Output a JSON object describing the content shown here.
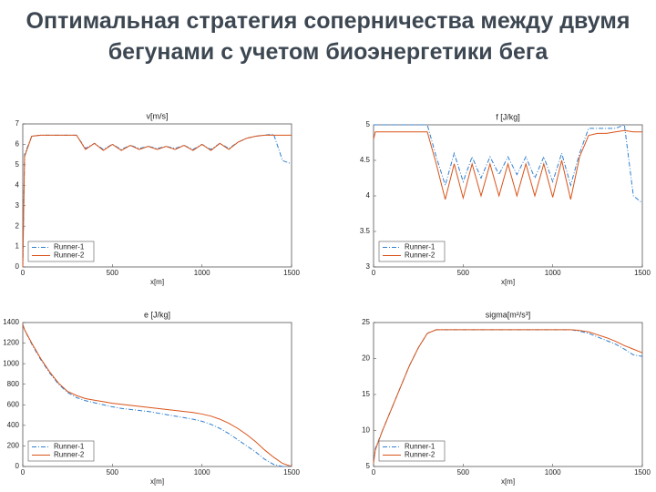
{
  "title": "Оптимальная стратегия соперничества между двумя бегунами с учетом биоэнергетики бега",
  "chart_data": [
    {
      "type": "line",
      "title": "v[m/s]",
      "xlabel": "x[m]",
      "xlim": [
        0,
        1500
      ],
      "xticks": [
        0,
        500,
        1000,
        1500
      ],
      "ylim": [
        0,
        7
      ],
      "yticks": [
        0,
        1,
        2,
        3,
        4,
        5,
        6,
        7
      ],
      "legend": "lower left",
      "x": [
        0,
        10,
        50,
        100,
        150,
        200,
        250,
        300,
        350,
        400,
        450,
        500,
        550,
        600,
        650,
        700,
        750,
        800,
        850,
        900,
        950,
        1000,
        1050,
        1100,
        1150,
        1200,
        1250,
        1300,
        1350,
        1400,
        1450,
        1500
      ],
      "series": [
        {
          "name": "Runner-1",
          "color": "#2f7fd0",
          "linestyle": "dashdot",
          "values": [
            0,
            5.5,
            6.4,
            6.45,
            6.45,
            6.45,
            6.45,
            6.45,
            5.8,
            6.05,
            5.75,
            6.0,
            5.75,
            5.95,
            5.8,
            5.9,
            5.8,
            5.9,
            5.8,
            5.95,
            5.75,
            6.0,
            5.75,
            6.05,
            5.8,
            6.1,
            6.3,
            6.4,
            6.45,
            6.5,
            5.2,
            5.05
          ]
        },
        {
          "name": "Runner-2",
          "color": "#d95319",
          "linestyle": "solid",
          "values": [
            0,
            5.4,
            6.4,
            6.45,
            6.45,
            6.45,
            6.45,
            6.45,
            5.75,
            6.05,
            5.7,
            6.0,
            5.7,
            5.95,
            5.75,
            5.9,
            5.75,
            5.9,
            5.75,
            5.95,
            5.7,
            6.0,
            5.7,
            6.05,
            5.75,
            6.1,
            6.3,
            6.4,
            6.45,
            6.45,
            6.45,
            6.45
          ]
        }
      ]
    },
    {
      "type": "line",
      "title": "f [J/kg]",
      "xlabel": "x[m]",
      "xlim": [
        0,
        1500
      ],
      "xticks": [
        0,
        500,
        1000,
        1500
      ],
      "ylim": [
        3,
        5
      ],
      "yticks": [
        3,
        3.5,
        4,
        4.5,
        5
      ],
      "legend": "lower left",
      "x": [
        0,
        10,
        50,
        100,
        150,
        200,
        250,
        300,
        350,
        400,
        450,
        500,
        550,
        600,
        650,
        700,
        750,
        800,
        850,
        900,
        950,
        1000,
        1050,
        1100,
        1150,
        1200,
        1250,
        1300,
        1350,
        1400,
        1450,
        1500
      ],
      "series": [
        {
          "name": "Runner-1",
          "color": "#2f7fd0",
          "linestyle": "dashdot",
          "values": [
            5.0,
            5.0,
            5.0,
            5.0,
            5.0,
            5.0,
            5.0,
            5.0,
            4.55,
            4.15,
            4.6,
            4.2,
            4.55,
            4.25,
            4.55,
            4.3,
            4.55,
            4.3,
            4.55,
            4.25,
            4.55,
            4.2,
            4.6,
            4.15,
            4.6,
            4.95,
            4.95,
            4.95,
            4.95,
            5.0,
            4.0,
            3.9
          ]
        },
        {
          "name": "Runner-2",
          "color": "#d95319",
          "linestyle": "solid",
          "values": [
            4.8,
            4.9,
            4.9,
            4.9,
            4.9,
            4.9,
            4.9,
            4.9,
            4.45,
            3.95,
            4.45,
            3.97,
            4.45,
            4.0,
            4.45,
            4.0,
            4.45,
            4.0,
            4.45,
            4.0,
            4.45,
            3.98,
            4.5,
            3.95,
            4.55,
            4.85,
            4.88,
            4.88,
            4.9,
            4.92,
            4.9,
            4.9
          ]
        }
      ]
    },
    {
      "type": "line",
      "title": "e [J/kg]",
      "xlabel": "x[m]",
      "xlim": [
        0,
        1500
      ],
      "xticks": [
        0,
        500,
        1000,
        1500
      ],
      "ylim": [
        0,
        1400
      ],
      "yticks": [
        0,
        200,
        400,
        600,
        800,
        1000,
        1200,
        1400
      ],
      "legend": "lower left",
      "x": [
        0,
        10,
        50,
        100,
        150,
        200,
        250,
        300,
        350,
        400,
        450,
        500,
        550,
        600,
        650,
        700,
        750,
        800,
        850,
        900,
        950,
        1000,
        1050,
        1100,
        1150,
        1200,
        1250,
        1300,
        1350,
        1400,
        1450,
        1500
      ],
      "series": [
        {
          "name": "Runner-1",
          "color": "#2f7fd0",
          "linestyle": "dashdot",
          "values": [
            1380,
            1330,
            1190,
            1040,
            910,
            800,
            720,
            670,
            640,
            620,
            600,
            580,
            565,
            555,
            545,
            535,
            520,
            505,
            490,
            475,
            460,
            440,
            410,
            370,
            320,
            260,
            200,
            140,
            70,
            20,
            0,
            0
          ]
        },
        {
          "name": "Runner-2",
          "color": "#d95319",
          "linestyle": "solid",
          "values": [
            1380,
            1330,
            1200,
            1050,
            920,
            810,
            730,
            690,
            660,
            645,
            630,
            615,
            605,
            595,
            585,
            575,
            565,
            555,
            545,
            535,
            525,
            510,
            490,
            460,
            420,
            370,
            310,
            240,
            160,
            90,
            30,
            0
          ]
        }
      ]
    },
    {
      "type": "line",
      "title": "sigma[m²/s³]",
      "xlabel": "x[m]",
      "xlim": [
        0,
        1500
      ],
      "xticks": [
        0,
        500,
        1000,
        1500
      ],
      "ylim": [
        5,
        25
      ],
      "yticks": [
        5,
        10,
        15,
        20,
        25
      ],
      "legend": "lower left",
      "x": [
        0,
        10,
        50,
        100,
        150,
        200,
        250,
        300,
        350,
        400,
        450,
        500,
        550,
        600,
        650,
        700,
        750,
        800,
        850,
        900,
        950,
        1000,
        1050,
        1100,
        1150,
        1200,
        1250,
        1300,
        1350,
        1400,
        1450,
        1500
      ],
      "series": [
        {
          "name": "Runner-1",
          "color": "#2f7fd0",
          "linestyle": "dashdot",
          "values": [
            6,
            7.5,
            10,
            13,
            16,
            19,
            21.5,
            23.5,
            24,
            24,
            24,
            24,
            24,
            24,
            24,
            24,
            24,
            24,
            24,
            24,
            24,
            24,
            24,
            24,
            23.8,
            23.5,
            23,
            22.5,
            22,
            21.3,
            20.5,
            20.3
          ]
        },
        {
          "name": "Runner-2",
          "color": "#d95319",
          "linestyle": "solid",
          "values": [
            5.5,
            7.3,
            10,
            13,
            16,
            19,
            21.5,
            23.5,
            24,
            24,
            24,
            24,
            24,
            24,
            24,
            24,
            24,
            24,
            24,
            24,
            24,
            24,
            24,
            24,
            23.9,
            23.7,
            23.3,
            22.9,
            22.4,
            21.8,
            21.3,
            20.8
          ]
        }
      ]
    }
  ]
}
